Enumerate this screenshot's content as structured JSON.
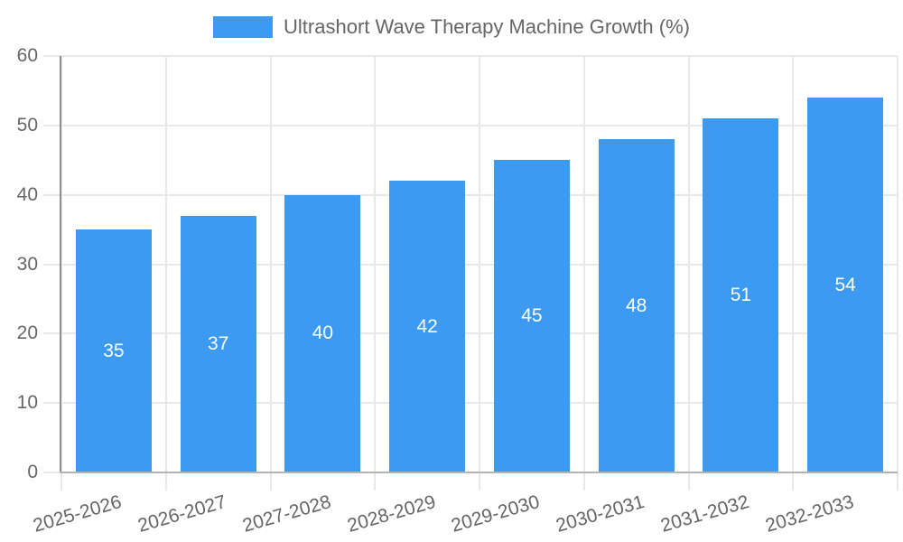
{
  "legend": {
    "label": "Ultrashort Wave Therapy Machine Growth (%)"
  },
  "chart_data": {
    "type": "bar",
    "title": "",
    "xlabel": "",
    "ylabel": "",
    "series_label": "Ultrashort Wave Therapy Machine Growth (%)",
    "categories": [
      "2025-2026",
      "2026-2027",
      "2027-2028",
      "2028-2029",
      "2029-2030",
      "2030-2031",
      "2031-2032",
      "2032-2033"
    ],
    "values": [
      35,
      37,
      40,
      42,
      45,
      48,
      51,
      54
    ],
    "bar_value_labels": [
      35,
      37,
      40,
      42,
      45,
      48,
      51,
      54
    ],
    "yticks": [
      0,
      10,
      20,
      30,
      40,
      50,
      60
    ],
    "ylim": [
      0,
      60
    ],
    "grid": true,
    "legend_position": "top-center",
    "value_label_position": "inside-center"
  },
  "colors": {
    "bar": "#3c9af0",
    "bar_value_text": "#ffffff",
    "axis_text": "#666666",
    "legend_text": "#666666",
    "grid_line": "#e8e8e8",
    "y_axis_line": "#8f8f8f",
    "x_axis_line": "#b3b3b3",
    "background": "#ffffff"
  }
}
